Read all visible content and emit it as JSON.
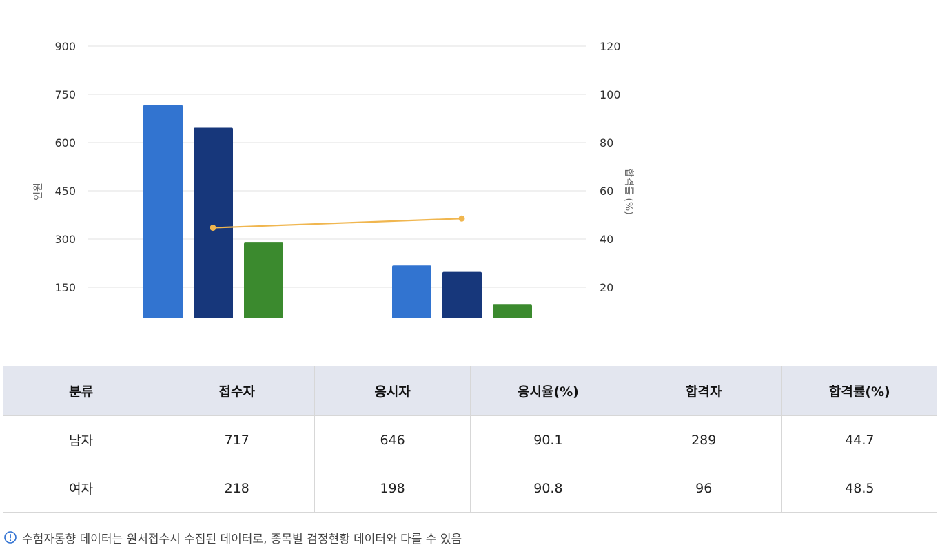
{
  "chart_data": {
    "type": "bar",
    "categories": [
      "남자",
      "여자"
    ],
    "series": [
      {
        "values": [
          717,
          218
        ],
        "color": "#3274d0",
        "kind": "bar"
      },
      {
        "values": [
          646,
          198
        ],
        "color": "#17377b",
        "kind": "bar"
      },
      {
        "values": [
          289,
          96
        ],
        "color": "#3b8a2e",
        "kind": "bar"
      },
      {
        "values": [
          44.7,
          48.5
        ],
        "color": "#f0b64f",
        "kind": "line",
        "axis": "right"
      }
    ],
    "ylabel": "인원",
    "y2label": "합격률 (%)",
    "yticks": [
      "150",
      "300",
      "450",
      "600",
      "750",
      "900"
    ],
    "y2ticks": [
      "20",
      "40",
      "60",
      "80",
      "100",
      "120"
    ],
    "ylim": [
      0,
      900
    ],
    "y2lim": [
      0,
      120
    ],
    "grid": true
  },
  "table": {
    "headers": [
      "분류",
      "접수자",
      "응시자",
      "응시율(%)",
      "합격자",
      "합격률(%)"
    ],
    "rows": [
      [
        "남자",
        "717",
        "646",
        "90.1",
        "289",
        "44.7"
      ],
      [
        "여자",
        "218",
        "198",
        "90.8",
        "96",
        "48.5"
      ]
    ]
  },
  "note": {
    "icon": "exclamation-circle-icon",
    "text": "수험자동향 데이터는 원서접수시 수집된 데이터로, 종목별 검정현황 데이터와 다를 수 있음"
  }
}
